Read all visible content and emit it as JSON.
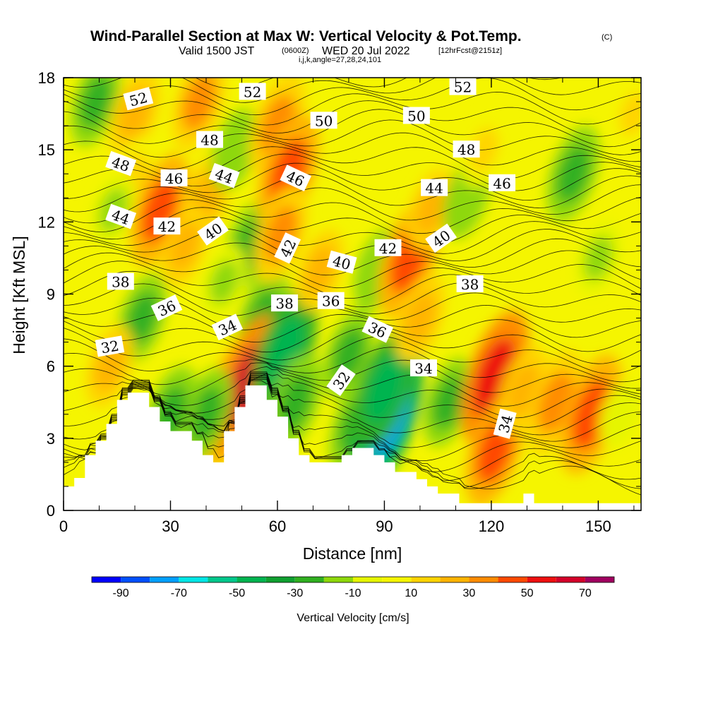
{
  "title": {
    "main": "Wind-Parallel Section at Max W: Vertical Velocity & Pot.Temp.",
    "copyright": "(C)",
    "valid_prefix": "Valid 1500 JST",
    "valid_z": "(0600Z)",
    "valid_date": "WED 20 Jul 2022",
    "fcst": "[12hrFcst@2151z]",
    "ijk": "i,j,k,angle=27,28,24,101"
  },
  "chart_data": {
    "type": "heatmap",
    "xlabel": "Distance [nm]",
    "ylabel": "Height [Kft MSL]",
    "xlim": [
      0,
      162
    ],
    "ylim": [
      0,
      18
    ],
    "x_ticks": [
      0,
      30,
      60,
      90,
      120,
      150
    ],
    "y_ticks": [
      0,
      3,
      6,
      9,
      12,
      15,
      18
    ],
    "colorbar": {
      "label": "Vertical Velocity [cm/s]",
      "tick_labels": [
        "-90",
        "-70",
        "-50",
        "-30",
        "-10",
        "10",
        "30",
        "50",
        "70"
      ],
      "tick_values": [
        -90,
        -70,
        -50,
        -30,
        -10,
        10,
        30,
        50,
        70
      ],
      "bounds": [
        -100,
        -80,
        -60,
        -40,
        -20,
        0,
        20,
        40,
        60,
        80
      ],
      "levels": [
        -100,
        -90,
        -80,
        -70,
        -60,
        -50,
        -40,
        -30,
        -20,
        -10,
        0,
        10,
        20,
        30,
        40,
        50,
        60,
        70,
        80
      ],
      "colors": [
        "#0000ff",
        "#0050ff",
        "#00a0ff",
        "#00e6e6",
        "#00c88c",
        "#00b450",
        "#10a030",
        "#30b020",
        "#8ed80a",
        "#e6f500",
        "#f5f500",
        "#ffd400",
        "#ffb400",
        "#ff8c00",
        "#ff4a00",
        "#ee1010",
        "#d4002a",
        "#a00060",
        "#6a0090"
      ]
    },
    "w_cells": [
      {
        "x": 9,
        "z": 17,
        "w": -25
      },
      {
        "x": 20,
        "z": 16.5,
        "w": 25
      },
      {
        "x": 38,
        "z": 17,
        "w": 30
      },
      {
        "x": 20,
        "z": 14,
        "w": 15
      },
      {
        "x": 27,
        "z": 12.5,
        "w": 40
      },
      {
        "x": 14,
        "z": 12.5,
        "w": -15
      },
      {
        "x": 22,
        "z": 8,
        "w": -25
      },
      {
        "x": 13,
        "z": 6,
        "w": 20
      },
      {
        "x": 40,
        "z": 13,
        "w": 25
      },
      {
        "x": 34,
        "z": 11,
        "w": 20
      },
      {
        "x": 48,
        "z": 15,
        "w": -20
      },
      {
        "x": 52,
        "z": 11,
        "w": -25
      },
      {
        "x": 56,
        "z": 8,
        "w": -30
      },
      {
        "x": 45,
        "z": 9.5,
        "w": -15
      },
      {
        "x": 47,
        "z": 4.5,
        "w": 50
      },
      {
        "x": 52,
        "z": 5.2,
        "w": 65
      },
      {
        "x": 40,
        "z": 4,
        "w": -28
      },
      {
        "x": 30,
        "z": 4,
        "w": -30
      },
      {
        "x": 60,
        "z": 16,
        "w": 35
      },
      {
        "x": 63,
        "z": 14,
        "w": 45
      },
      {
        "x": 61,
        "z": 11.5,
        "w": 30
      },
      {
        "x": 62,
        "z": 6.5,
        "w": -50
      },
      {
        "x": 65,
        "z": 4.5,
        "w": -30
      },
      {
        "x": 72,
        "z": 10,
        "w": 20
      },
      {
        "x": 80,
        "z": 6.5,
        "w": -25
      },
      {
        "x": 82,
        "z": 3.5,
        "w": -30
      },
      {
        "x": 91,
        "z": 4,
        "w": -80
      },
      {
        "x": 90,
        "z": 5,
        "w": -45
      },
      {
        "x": 88,
        "z": 10,
        "w": -20
      },
      {
        "x": 97,
        "z": 10.5,
        "w": 45
      },
      {
        "x": 100,
        "z": 8,
        "w": 25
      },
      {
        "x": 103,
        "z": 12.5,
        "w": 20
      },
      {
        "x": 108,
        "z": 4.5,
        "w": -25
      },
      {
        "x": 113,
        "z": 13,
        "w": -20
      },
      {
        "x": 118,
        "z": 15,
        "w": 15
      },
      {
        "x": 121,
        "z": 5.5,
        "w": 55
      },
      {
        "x": 121,
        "z": 2.5,
        "w": 40
      },
      {
        "x": 129,
        "z": 5,
        "w": 25
      },
      {
        "x": 138,
        "z": 4.5,
        "w": 35
      },
      {
        "x": 148,
        "z": 4,
        "w": 45
      },
      {
        "x": 143,
        "z": 14,
        "w": -30
      },
      {
        "x": 150,
        "z": 10.5,
        "w": -15
      },
      {
        "x": 156,
        "z": 4,
        "w": -10
      },
      {
        "x": 160,
        "z": 16.5,
        "w": 15
      }
    ],
    "terrain": [
      {
        "x": 0,
        "z": 1.0
      },
      {
        "x": 3,
        "z": 1.35
      },
      {
        "x": 6,
        "z": 2.3
      },
      {
        "x": 9,
        "z": 2.9
      },
      {
        "x": 12,
        "z": 3.6
      },
      {
        "x": 15,
        "z": 4.6
      },
      {
        "x": 18,
        "z": 4.9
      },
      {
        "x": 21,
        "z": 4.9
      },
      {
        "x": 24,
        "z": 4.3
      },
      {
        "x": 27,
        "z": 3.7
      },
      {
        "x": 30,
        "z": 3.3
      },
      {
        "x": 33,
        "z": 3.3
      },
      {
        "x": 36,
        "z": 2.9
      },
      {
        "x": 39,
        "z": 2.3
      },
      {
        "x": 42,
        "z": 2.0
      },
      {
        "x": 45,
        "z": 3.3
      },
      {
        "x": 48,
        "z": 4.3
      },
      {
        "x": 51,
        "z": 5.2
      },
      {
        "x": 54,
        "z": 5.2
      },
      {
        "x": 57,
        "z": 4.6
      },
      {
        "x": 60,
        "z": 3.9
      },
      {
        "x": 63,
        "z": 3.0
      },
      {
        "x": 66,
        "z": 2.3
      },
      {
        "x": 69,
        "z": 2.0
      },
      {
        "x": 72,
        "z": 2.0
      },
      {
        "x": 75,
        "z": 2.0
      },
      {
        "x": 78,
        "z": 2.3
      },
      {
        "x": 81,
        "z": 2.6
      },
      {
        "x": 84,
        "z": 2.6
      },
      {
        "x": 87,
        "z": 2.3
      },
      {
        "x": 90,
        "z": 2.0
      },
      {
        "x": 93,
        "z": 1.6
      },
      {
        "x": 96,
        "z": 1.6
      },
      {
        "x": 99,
        "z": 1.3
      },
      {
        "x": 102,
        "z": 1.0
      },
      {
        "x": 105,
        "z": 0.7
      },
      {
        "x": 108,
        "z": 0.7
      },
      {
        "x": 111,
        "z": 0.3
      },
      {
        "x": 114,
        "z": 0.3
      },
      {
        "x": 117,
        "z": 0.3
      },
      {
        "x": 120,
        "z": 0.3
      },
      {
        "x": 123,
        "z": 0.3
      },
      {
        "x": 126,
        "z": 0.3
      },
      {
        "x": 129,
        "z": 0.7
      },
      {
        "x": 132,
        "z": 0.3
      },
      {
        "x": 135,
        "z": 0.3
      },
      {
        "x": 138,
        "z": 0.3
      },
      {
        "x": 141,
        "z": 0.3
      },
      {
        "x": 144,
        "z": 0.3
      },
      {
        "x": 147,
        "z": 0.3
      },
      {
        "x": 150,
        "z": 0.3
      },
      {
        "x": 153,
        "z": 0.3
      },
      {
        "x": 156,
        "z": 0.3
      },
      {
        "x": 159,
        "z": 0.3
      },
      {
        "x": 162,
        "z": 0.3
      }
    ],
    "theta_labels": [
      {
        "text": "52",
        "x": 21,
        "z": 17.1,
        "rot": -15
      },
      {
        "text": "52",
        "x": 53,
        "z": 17.4,
        "rot": 0
      },
      {
        "text": "52",
        "x": 112,
        "z": 17.6,
        "rot": 0
      },
      {
        "text": "50",
        "x": 73,
        "z": 16.2,
        "rot": 0
      },
      {
        "text": "50",
        "x": 99,
        "z": 16.4,
        "rot": 0
      },
      {
        "text": "48",
        "x": 16,
        "z": 14.4,
        "rot": 20
      },
      {
        "text": "48",
        "x": 41,
        "z": 15.4,
        "rot": 0
      },
      {
        "text": "48",
        "x": 113,
        "z": 15.0,
        "rot": 0
      },
      {
        "text": "46",
        "x": 31,
        "z": 13.8,
        "rot": 0
      },
      {
        "text": "46",
        "x": 65,
        "z": 13.8,
        "rot": 25
      },
      {
        "text": "46",
        "x": 123,
        "z": 13.6,
        "rot": 0
      },
      {
        "text": "44",
        "x": 16,
        "z": 12.2,
        "rot": 20
      },
      {
        "text": "44",
        "x": 45,
        "z": 13.9,
        "rot": 20
      },
      {
        "text": "44",
        "x": 104,
        "z": 13.4,
        "rot": 0
      },
      {
        "text": "42",
        "x": 29,
        "z": 11.8,
        "rot": 0
      },
      {
        "text": "42",
        "x": 63,
        "z": 10.9,
        "rot": -65
      },
      {
        "text": "42",
        "x": 91,
        "z": 10.9,
        "rot": 0
      },
      {
        "text": "40",
        "x": 42,
        "z": 11.6,
        "rot": -35
      },
      {
        "text": "40",
        "x": 78,
        "z": 10.3,
        "rot": 15
      },
      {
        "text": "40",
        "x": 106,
        "z": 11.3,
        "rot": -35
      },
      {
        "text": "38",
        "x": 16,
        "z": 9.5,
        "rot": 0
      },
      {
        "text": "38",
        "x": 62,
        "z": 8.6,
        "rot": 0
      },
      {
        "text": "38",
        "x": 114,
        "z": 9.4,
        "rot": 0
      },
      {
        "text": "36",
        "x": 29,
        "z": 8.4,
        "rot": -25
      },
      {
        "text": "36",
        "x": 75,
        "z": 8.7,
        "rot": 0
      },
      {
        "text": "36",
        "x": 88,
        "z": 7.5,
        "rot": 25
      },
      {
        "text": "34",
        "x": 46,
        "z": 7.6,
        "rot": -25
      },
      {
        "text": "34",
        "x": 101,
        "z": 5.9,
        "rot": 0
      },
      {
        "text": "34",
        "x": 124,
        "z": 3.6,
        "rot": -75
      },
      {
        "text": "32",
        "x": 13,
        "z": 6.8,
        "rot": -10
      },
      {
        "text": "32",
        "x": 78,
        "z": 5.4,
        "rot": -55
      }
    ],
    "grid": false
  }
}
